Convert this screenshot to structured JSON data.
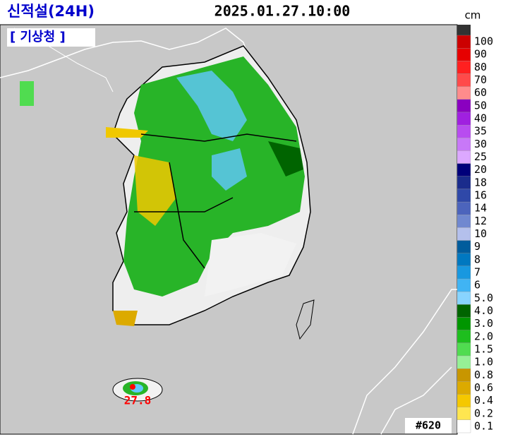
{
  "header": {
    "title": "신적설(24H)",
    "timestamp": "2025.01.27.10:00",
    "agency": "[ 기상청 ]"
  },
  "legend": {
    "unit": "cm",
    "top_color": "#333333",
    "entries": [
      {
        "label": "100",
        "color": "#cc0000"
      },
      {
        "label": "90",
        "color": "#e60000"
      },
      {
        "label": "80",
        "color": "#ff2020"
      },
      {
        "label": "70",
        "color": "#ff4a4a"
      },
      {
        "label": "60",
        "color": "#ff8c8c"
      },
      {
        "label": "50",
        "color": "#8a00c0"
      },
      {
        "label": "40",
        "color": "#a020e0"
      },
      {
        "label": "35",
        "color": "#b84cf0"
      },
      {
        "label": "30",
        "color": "#c878f8"
      },
      {
        "label": "25",
        "color": "#dca8ff"
      },
      {
        "label": "20",
        "color": "#00007a"
      },
      {
        "label": "18",
        "color": "#1a2c8c"
      },
      {
        "label": "16",
        "color": "#2f48a8"
      },
      {
        "label": "14",
        "color": "#4c64bc"
      },
      {
        "label": "12",
        "color": "#7088d0"
      },
      {
        "label": "10",
        "color": "#b4c0ec"
      },
      {
        "label": "9",
        "color": "#005c9c"
      },
      {
        "label": "8",
        "color": "#0078c0"
      },
      {
        "label": "7",
        "color": "#1898e0"
      },
      {
        "label": "6",
        "color": "#40b4f4"
      },
      {
        "label": "5.0",
        "color": "#88d4ff"
      },
      {
        "label": "4.0",
        "color": "#006400"
      },
      {
        "label": "3.0",
        "color": "#009600"
      },
      {
        "label": "2.0",
        "color": "#1ebe1e"
      },
      {
        "label": "1.5",
        "color": "#50dc50"
      },
      {
        "label": "1.0",
        "color": "#96f096"
      },
      {
        "label": "0.8",
        "color": "#c89600"
      },
      {
        "label": "0.6",
        "color": "#dcaa00"
      },
      {
        "label": "0.4",
        "color": "#f5c800"
      },
      {
        "label": "0.2",
        "color": "#ffe650"
      },
      {
        "label": "0.1",
        "color": "#ffffff"
      }
    ]
  },
  "map": {
    "max_label": "27.8",
    "station_id": "#620"
  }
}
